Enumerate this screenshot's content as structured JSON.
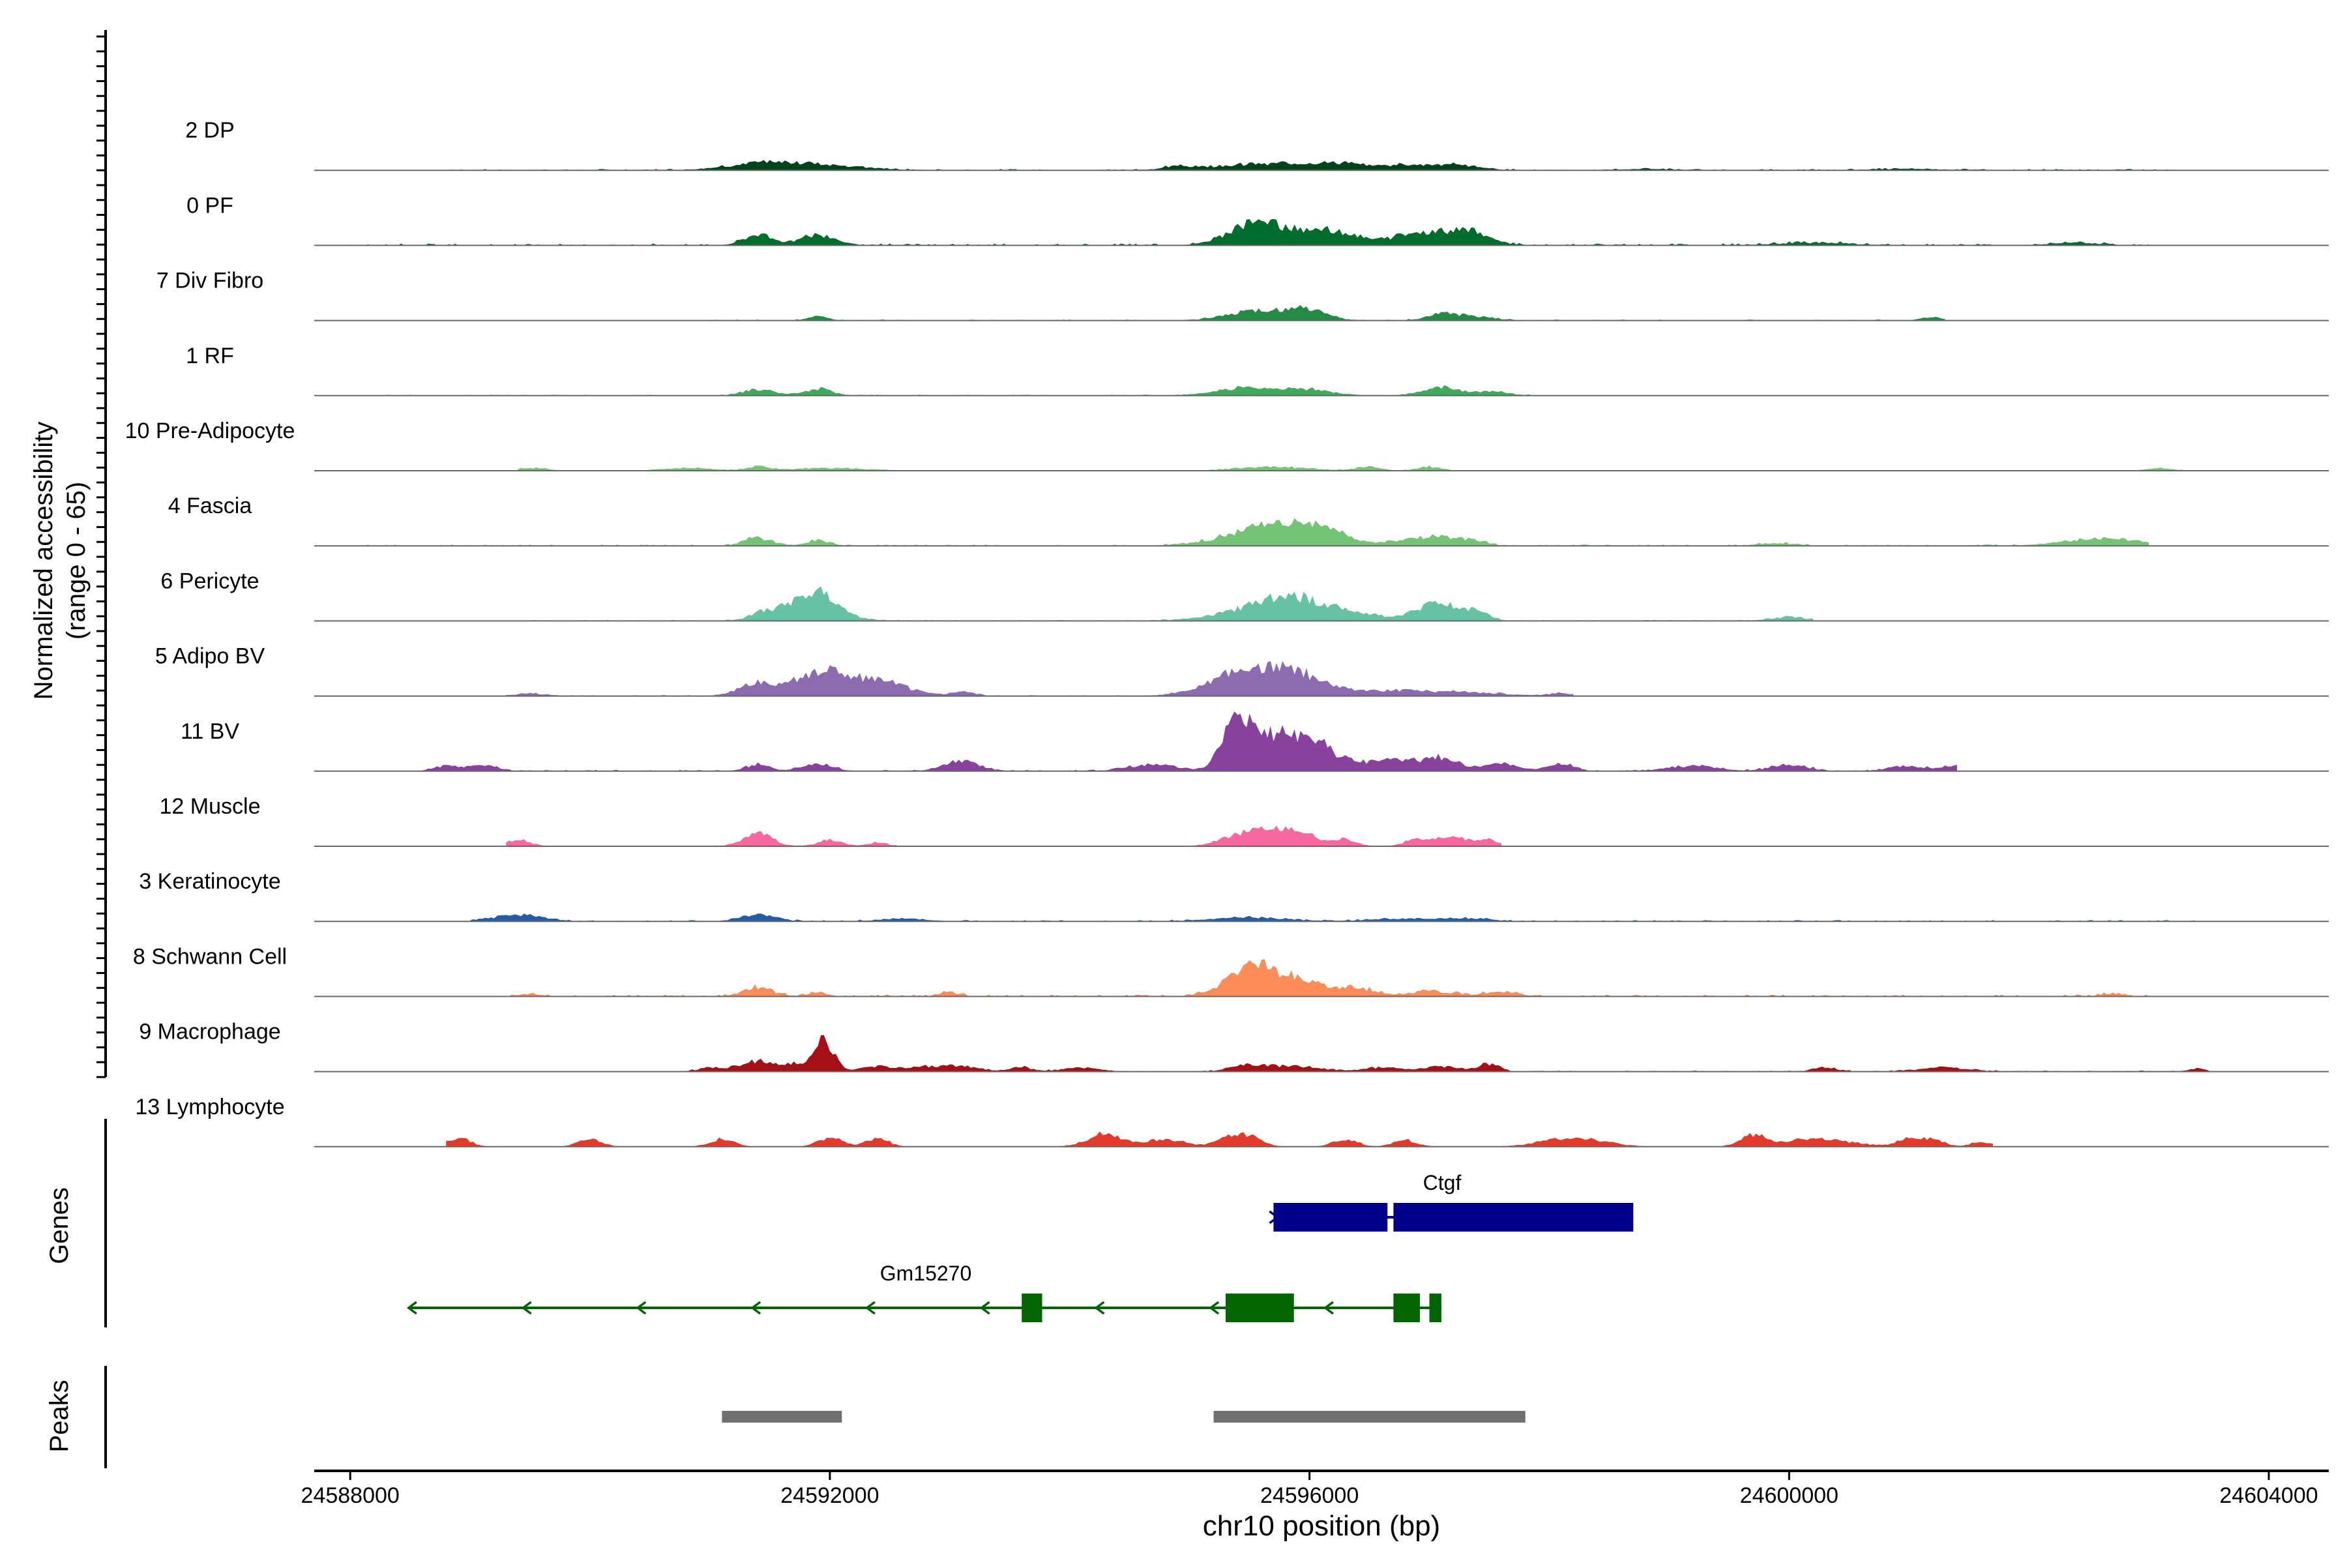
{
  "chart_data": {
    "type": "coverage-track",
    "xlabel": "chr10 position (bp)",
    "xlim": [
      24587700,
      24604500
    ],
    "x_ticks": [
      "24588000",
      "24592000",
      "24596000",
      "24600000",
      "24604000"
    ],
    "x_tick_values": [
      24588000,
      24592000,
      24596000,
      24600000,
      24604000
    ],
    "ylabel_line1": "Normalized accessibility",
    "ylabel_line2": "(range 0 - 65)",
    "ylim": [
      0,
      65
    ],
    "tracks": [
      {
        "name": "2 DP",
        "color": "#00441b",
        "peaks": [
          [
            24591400,
            300,
            4
          ],
          [
            24591900,
            350,
            4
          ],
          [
            24594900,
            100,
            2
          ],
          [
            24595700,
            500,
            5
          ],
          [
            24596300,
            250,
            3
          ],
          [
            24596800,
            150,
            3
          ],
          [
            24597200,
            200,
            4
          ],
          [
            24598800,
            200,
            1
          ],
          [
            24601000,
            300,
            1
          ]
        ],
        "range": [
          24588700,
          24603300
        ],
        "noise": 1
      },
      {
        "name": "0 PF",
        "color": "#006d2c",
        "peaks": [
          [
            24591400,
            120,
            8
          ],
          [
            24591900,
            150,
            8
          ],
          [
            24595500,
            200,
            14
          ],
          [
            24595900,
            250,
            10
          ],
          [
            24596300,
            200,
            7
          ],
          [
            24596800,
            120,
            6
          ],
          [
            24597100,
            200,
            10
          ],
          [
            24597400,
            150,
            7
          ],
          [
            24600200,
            300,
            2
          ],
          [
            24602400,
            200,
            2
          ]
        ],
        "range": [
          24588000,
          24603000
        ],
        "noise": 1.5
      },
      {
        "name": "7 Div Fibro",
        "color": "#238b45",
        "peaks": [
          [
            24591900,
            80,
            3
          ],
          [
            24595600,
            250,
            8
          ],
          [
            24596000,
            150,
            7
          ],
          [
            24597100,
            120,
            5
          ],
          [
            24597400,
            150,
            3
          ],
          [
            24601200,
            100,
            2
          ]
        ],
        "range": [
          24591000,
          24601300
        ],
        "noise": 0.8
      },
      {
        "name": "1 RF",
        "color": "#41ab5d",
        "peaks": [
          [
            24591400,
            120,
            5
          ],
          [
            24591900,
            120,
            5
          ],
          [
            24595500,
            250,
            6
          ],
          [
            24596000,
            200,
            4
          ],
          [
            24597100,
            150,
            6
          ],
          [
            24597500,
            150,
            3
          ]
        ],
        "range": [
          24588300,
          24598000
        ],
        "noise": 0.8
      },
      {
        "name": "10 Pre-Adipocyte",
        "color": "#74c476",
        "peaks": [
          [
            24589500,
            150,
            2
          ],
          [
            24590800,
            200,
            2
          ],
          [
            24591400,
            100,
            3
          ],
          [
            24592000,
            300,
            2
          ],
          [
            24595700,
            300,
            3
          ],
          [
            24596500,
            100,
            3
          ],
          [
            24597000,
            100,
            3
          ],
          [
            24603100,
            100,
            2
          ]
        ],
        "range": [
          24589400,
          24603500
        ],
        "noise": 0.5
      },
      {
        "name": "4 Fascia",
        "color": "#74c476",
        "peaks": [
          [
            24591400,
            120,
            6
          ],
          [
            24591900,
            100,
            4
          ],
          [
            24595700,
            350,
            16
          ],
          [
            24596100,
            200,
            8
          ],
          [
            24596800,
            150,
            4
          ],
          [
            24597100,
            150,
            7
          ],
          [
            24597400,
            100,
            3
          ],
          [
            24599900,
            150,
            2
          ],
          [
            24602600,
            300,
            6
          ]
        ],
        "range": [
          24588000,
          24603000
        ],
        "noise": 1
      },
      {
        "name": "6 Pericyte",
        "color": "#66c2a4",
        "peaks": [
          [
            24591400,
            80,
            2
          ],
          [
            24591800,
            250,
            16
          ],
          [
            24591950,
            100,
            8
          ],
          [
            24595500,
            300,
            8
          ],
          [
            24595900,
            250,
            15
          ],
          [
            24596400,
            250,
            5
          ],
          [
            24596900,
            120,
            3
          ],
          [
            24597100,
            150,
            13
          ],
          [
            24597400,
            100,
            6
          ],
          [
            24600000,
            150,
            3
          ]
        ],
        "range": [
          24589500,
          24600200
        ],
        "noise": 0.8
      },
      {
        "name": "5 Adipo BV",
        "color": "#8c6bb1",
        "peaks": [
          [
            24589500,
            100,
            2
          ],
          [
            24591400,
            150,
            10
          ],
          [
            24591900,
            200,
            17
          ],
          [
            24592200,
            200,
            7
          ],
          [
            24592500,
            200,
            8
          ],
          [
            24593100,
            100,
            3
          ],
          [
            24595500,
            300,
            19
          ],
          [
            24595900,
            250,
            10
          ],
          [
            24596300,
            300,
            3
          ],
          [
            24596800,
            200,
            3
          ],
          [
            24597300,
            300,
            3
          ],
          [
            24598100,
            100,
            2
          ]
        ],
        "range": [
          24589300,
          24598200
        ],
        "noise": 0.8
      },
      {
        "name": "11 BV",
        "color": "#88419d",
        "peaks": [
          [
            24588800,
            100,
            4
          ],
          [
            24589100,
            120,
            5
          ],
          [
            24591400,
            100,
            5
          ],
          [
            24591900,
            120,
            6
          ],
          [
            24593100,
            150,
            7
          ],
          [
            24594700,
            200,
            5
          ],
          [
            24595400,
            120,
            40
          ],
          [
            24595700,
            150,
            25
          ],
          [
            24596000,
            150,
            22
          ],
          [
            24596300,
            150,
            6
          ],
          [
            24596700,
            200,
            8
          ],
          [
            24597100,
            150,
            9
          ],
          [
            24597600,
            150,
            5
          ],
          [
            24598100,
            100,
            6
          ],
          [
            24599200,
            200,
            4
          ],
          [
            24600000,
            150,
            5
          ],
          [
            24601000,
            150,
            4
          ],
          [
            24601400,
            100,
            4
          ]
        ],
        "range": [
          24588500,
          24601400
        ],
        "noise": 1
      },
      {
        "name": "12 Muscle",
        "color": "#f768a1",
        "peaks": [
          [
            24589400,
            100,
            5
          ],
          [
            24591400,
            120,
            10
          ],
          [
            24592000,
            100,
            5
          ],
          [
            24592400,
            80,
            3
          ],
          [
            24595400,
            150,
            8
          ],
          [
            24595800,
            200,
            15
          ],
          [
            24596300,
            100,
            5
          ],
          [
            24596900,
            100,
            5
          ],
          [
            24597200,
            150,
            7
          ],
          [
            24597500,
            80,
            4
          ]
        ],
        "range": [
          24589300,
          24597600
        ],
        "noise": 0.5
      },
      {
        "name": "3 Keratinocyte",
        "color": "#225ea8",
        "peaks": [
          [
            24589400,
            200,
            5
          ],
          [
            24591400,
            150,
            5
          ],
          [
            24592600,
            200,
            2
          ],
          [
            24595500,
            300,
            3
          ],
          [
            24596800,
            300,
            2
          ],
          [
            24597300,
            200,
            2
          ]
        ],
        "range": [
          24589000,
          24603500
        ],
        "noise": 1
      },
      {
        "name": "8 Schwann Cell",
        "color": "#fc8d59",
        "peaks": [
          [
            24589500,
            100,
            2
          ],
          [
            24591400,
            120,
            7
          ],
          [
            24591900,
            80,
            3
          ],
          [
            24593000,
            80,
            3
          ],
          [
            24595500,
            200,
            20
          ],
          [
            24595900,
            250,
            12
          ],
          [
            24596400,
            150,
            5
          ],
          [
            24597000,
            200,
            4
          ],
          [
            24597600,
            150,
            3
          ],
          [
            24602700,
            100,
            2
          ]
        ],
        "range": [
          24589300,
          24603000
        ],
        "noise": 1.5
      },
      {
        "name": "9 Macrophage",
        "color": "#a50f15",
        "peaks": [
          [
            24591000,
            100,
            3
          ],
          [
            24591400,
            150,
            8
          ],
          [
            24591700,
            100,
            5
          ],
          [
            24591950,
            80,
            24
          ],
          [
            24592400,
            150,
            4
          ],
          [
            24592800,
            150,
            3
          ],
          [
            24593100,
            150,
            4
          ],
          [
            24593600,
            100,
            3
          ],
          [
            24594100,
            150,
            3
          ],
          [
            24595500,
            150,
            5
          ],
          [
            24595900,
            200,
            4
          ],
          [
            24596600,
            150,
            3
          ],
          [
            24597100,
            150,
            4
          ],
          [
            24597500,
            80,
            6
          ],
          [
            24600300,
            100,
            3
          ],
          [
            24601300,
            200,
            3
          ],
          [
            24603400,
            80,
            2
          ]
        ],
        "range": [
          24590800,
          24603500
        ],
        "noise": 0.8
      },
      {
        "name": "13 Lymphocyte",
        "color": "#e7392b",
        "peaks": [
          [
            24588900,
            100,
            7
          ],
          [
            24590000,
            100,
            6
          ],
          [
            24591100,
            100,
            6
          ],
          [
            24592000,
            100,
            7
          ],
          [
            24592400,
            100,
            6
          ],
          [
            24594300,
            150,
            10
          ],
          [
            24594800,
            150,
            6
          ],
          [
            24595300,
            100,
            6
          ],
          [
            24595500,
            100,
            9
          ],
          [
            24596300,
            100,
            6
          ],
          [
            24596800,
            100,
            5
          ],
          [
            24598200,
            250,
            7
          ],
          [
            24599700,
            100,
            8
          ],
          [
            24600200,
            300,
            6
          ],
          [
            24601000,
            100,
            6
          ],
          [
            24601200,
            100,
            5
          ],
          [
            24601600,
            80,
            4
          ]
        ],
        "range": [
          24588800,
          24601700
        ],
        "noise": 0
      }
    ],
    "genes_label": "Genes",
    "genes": [
      {
        "name": "Ctgf",
        "strand": "+",
        "color": "#00008b",
        "start": 24595700,
        "end": 24598700,
        "exons": [
          [
            24595700,
            24596350
          ],
          [
            24596350,
            24596650
          ],
          [
            24596700,
            24598700
          ]
        ]
      },
      {
        "name": "Gm15270",
        "strand": "-",
        "color": "#006400",
        "start": 24588500,
        "end": 24597100,
        "exons": [
          [
            24593600,
            24593770
          ],
          [
            24595300,
            24595870
          ],
          [
            24596700,
            24596920
          ],
          [
            24597000,
            24597100
          ]
        ]
      }
    ],
    "peaks_label": "Peaks",
    "peak_regions": [
      [
        24591100,
        24592100
      ],
      [
        24595200,
        24597800
      ]
    ],
    "peak_color": "#707070"
  }
}
